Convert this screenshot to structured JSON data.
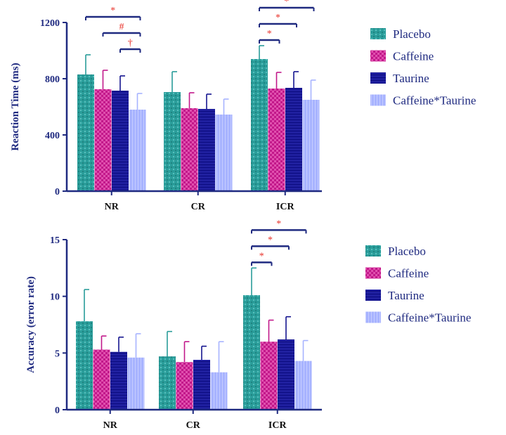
{
  "chart_data": [
    {
      "type": "bar",
      "ylabel": "Reaction Time (ms)",
      "xlabel": "",
      "categories": [
        "NR",
        "CR",
        "ICR"
      ],
      "ylim": [
        0,
        1200
      ],
      "yticks": [
        "0",
        "400",
        "800",
        "1200"
      ],
      "ytick_values": [
        0,
        400,
        800,
        1200
      ],
      "series": [
        {
          "name": "Placebo",
          "values": [
            830,
            705,
            940
          ],
          "errors": [
            140,
            145,
            95
          ]
        },
        {
          "name": "Caffeine",
          "values": [
            725,
            590,
            730
          ],
          "errors": [
            135,
            110,
            115
          ]
        },
        {
          "name": "Taurine",
          "values": [
            715,
            585,
            735
          ],
          "errors": [
            105,
            105,
            115
          ]
        },
        {
          "name": "Caffeine*Taurine",
          "values": [
            580,
            545,
            650
          ],
          "errors": [
            115,
            110,
            140
          ]
        }
      ],
      "significance": [
        {
          "category": 0,
          "from": 0,
          "to": 3,
          "label": "*"
        },
        {
          "category": 0,
          "from": 1,
          "to": 3,
          "label": "#"
        },
        {
          "category": 0,
          "from": 2,
          "to": 3,
          "label": "†"
        },
        {
          "category": 2,
          "from": 0,
          "to": 1,
          "label": "*"
        },
        {
          "category": 2,
          "from": 0,
          "to": 2,
          "label": "*"
        },
        {
          "category": 2,
          "from": 0,
          "to": 3,
          "label": "*"
        }
      ]
    },
    {
      "type": "bar",
      "ylabel": "Accuracy (error rate)",
      "xlabel": "",
      "categories": [
        "NR",
        "CR",
        "ICR"
      ],
      "ylim": [
        0,
        15
      ],
      "yticks": [
        "0",
        "5",
        "10",
        "15"
      ],
      "ytick_values": [
        0,
        5,
        10,
        15
      ],
      "series": [
        {
          "name": "Placebo",
          "values": [
            7.8,
            4.7,
            10.1
          ],
          "errors": [
            2.8,
            2.2,
            2.4
          ]
        },
        {
          "name": "Caffeine",
          "values": [
            5.3,
            4.2,
            6.0
          ],
          "errors": [
            1.2,
            1.8,
            1.9
          ]
        },
        {
          "name": "Taurine",
          "values": [
            5.1,
            4.4,
            6.2
          ],
          "errors": [
            1.3,
            1.2,
            2.0
          ]
        },
        {
          "name": "Caffeine*Taurine",
          "values": [
            4.6,
            3.3,
            4.3
          ],
          "errors": [
            2.1,
            2.7,
            1.8
          ]
        }
      ],
      "significance": [
        {
          "category": 2,
          "from": 0,
          "to": 1,
          "label": "*"
        },
        {
          "category": 2,
          "from": 0,
          "to": 2,
          "label": "*"
        },
        {
          "category": 2,
          "from": 0,
          "to": 3,
          "label": "*"
        }
      ]
    }
  ],
  "legend": [
    "Placebo",
    "Caffeine",
    "Taurine",
    "Caffeine*Taurine"
  ],
  "colors": {
    "placebo": "#2a9d9a",
    "caffeine": "#c2188a",
    "taurine": "#15158f",
    "caffeine_taurine": "#a7b3ff",
    "axis": "#1f2a80",
    "significance": "#e8312a"
  }
}
